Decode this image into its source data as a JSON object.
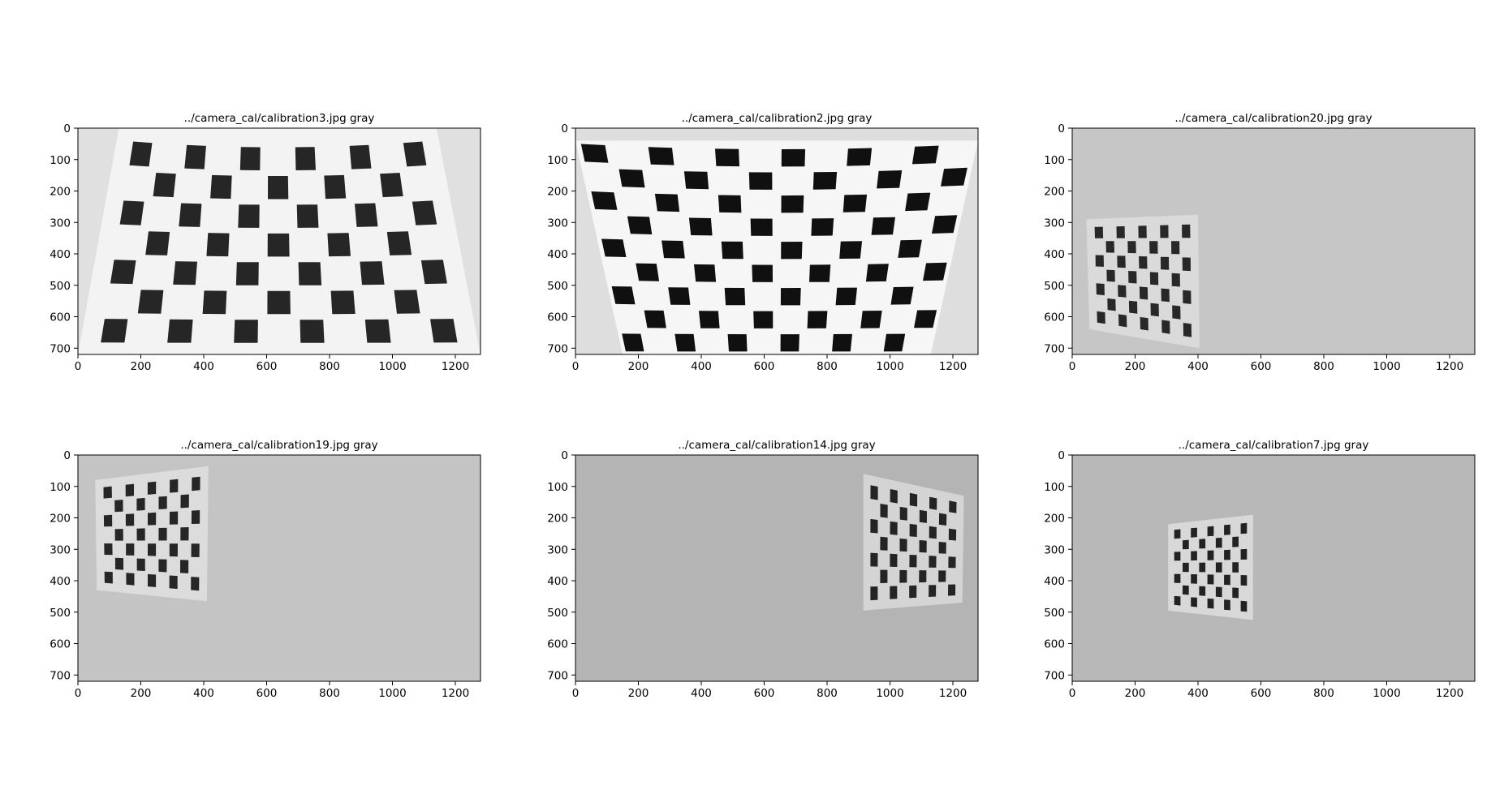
{
  "figure": {
    "background": "#ffffff"
  },
  "chart_data": [
    {
      "type": "image",
      "title": "../camera_cal/calibration3.jpg gray",
      "xlim": [
        0,
        1280
      ],
      "ylim": [
        720,
        0
      ],
      "xticks": [
        0,
        200,
        400,
        600,
        800,
        1000,
        1200
      ],
      "yticks": [
        0,
        100,
        200,
        300,
        400,
        500,
        600,
        700
      ],
      "image": {
        "background": "#e0e0e0",
        "board_color": "#f3f3f3",
        "square_color": "#262626",
        "board_quad": [
          [
            130,
            0
          ],
          [
            1140,
            0
          ],
          [
            1280,
            720
          ],
          [
            0,
            720
          ]
        ],
        "grid": {
          "cols": 11,
          "rows": 7,
          "margin": 0.04
        },
        "y_warp": 0.28
      }
    },
    {
      "type": "image",
      "title": "../camera_cal/calibration2.jpg gray",
      "xlim": [
        0,
        1280
      ],
      "ylim": [
        720,
        0
      ],
      "xticks": [
        0,
        200,
        400,
        600,
        800,
        1000,
        1200
      ],
      "yticks": [
        0,
        100,
        200,
        300,
        400,
        500,
        600,
        700
      ],
      "image": {
        "background": "#dedede",
        "board_color": "#f6f6f6",
        "square_color": "#101010",
        "board_quad": [
          [
            0,
            40
          ],
          [
            1280,
            40
          ],
          [
            1130,
            720
          ],
          [
            150,
            720
          ]
        ],
        "grid": {
          "cols": 12,
          "rows": 9,
          "margin": 0.0
        },
        "y_warp": 0.22
      }
    },
    {
      "type": "image",
      "title": "../camera_cal/calibration20.jpg gray",
      "xlim": [
        0,
        1280
      ],
      "ylim": [
        720,
        0
      ],
      "xticks": [
        0,
        200,
        400,
        600,
        800,
        1000,
        1200
      ],
      "yticks": [
        0,
        100,
        200,
        300,
        400,
        500,
        600,
        700
      ],
      "image": {
        "background": "#c6c6c6",
        "board_color": "#dadada",
        "square_color": "#282828",
        "board_quad": [
          [
            45,
            290
          ],
          [
            400,
            275
          ],
          [
            405,
            700
          ],
          [
            55,
            640
          ]
        ],
        "grid": {
          "cols": 9,
          "rows": 7,
          "margin": 0.06
        },
        "y_warp": 0.0
      }
    },
    {
      "type": "image",
      "title": "../camera_cal/calibration19.jpg gray",
      "xlim": [
        0,
        1280
      ],
      "ylim": [
        720,
        0
      ],
      "xticks": [
        0,
        200,
        400,
        600,
        800,
        1000,
        1200
      ],
      "yticks": [
        0,
        100,
        200,
        300,
        400,
        500,
        600,
        700
      ],
      "image": {
        "background": "#c4c4c4",
        "board_color": "#dcdcdc",
        "square_color": "#262626",
        "board_quad": [
          [
            55,
            80
          ],
          [
            415,
            35
          ],
          [
            410,
            465
          ],
          [
            60,
            430
          ]
        ],
        "grid": {
          "cols": 9,
          "rows": 7,
          "margin": 0.06
        },
        "y_warp": 0.0
      }
    },
    {
      "type": "image",
      "title": "../camera_cal/calibration14.jpg gray",
      "xlim": [
        0,
        1280
      ],
      "ylim": [
        720,
        0
      ],
      "xticks": [
        0,
        200,
        400,
        600,
        800,
        1000,
        1200
      ],
      "yticks": [
        0,
        100,
        200,
        300,
        400,
        500,
        600,
        700
      ],
      "image": {
        "background": "#b4b4b4",
        "board_color": "#d4d4d4",
        "square_color": "#242424",
        "board_quad": [
          [
            915,
            60
          ],
          [
            1235,
            130
          ],
          [
            1230,
            470
          ],
          [
            915,
            495
          ]
        ],
        "grid": {
          "cols": 9,
          "rows": 7,
          "margin": 0.06
        },
        "y_warp": 0.0
      }
    },
    {
      "type": "image",
      "title": "../camera_cal/calibration7.jpg gray",
      "xlim": [
        0,
        1280
      ],
      "ylim": [
        720,
        0
      ],
      "xticks": [
        0,
        200,
        400,
        600,
        800,
        1000,
        1200
      ],
      "yticks": [
        0,
        100,
        200,
        300,
        400,
        500,
        600,
        700
      ],
      "image": {
        "background": "#b8b8b8",
        "board_color": "#d8d8d8",
        "square_color": "#222222",
        "board_quad": [
          [
            305,
            220
          ],
          [
            575,
            190
          ],
          [
            575,
            525
          ],
          [
            305,
            495
          ]
        ],
        "grid": {
          "cols": 9,
          "rows": 7,
          "margin": 0.06
        },
        "y_warp": 0.0
      }
    }
  ]
}
